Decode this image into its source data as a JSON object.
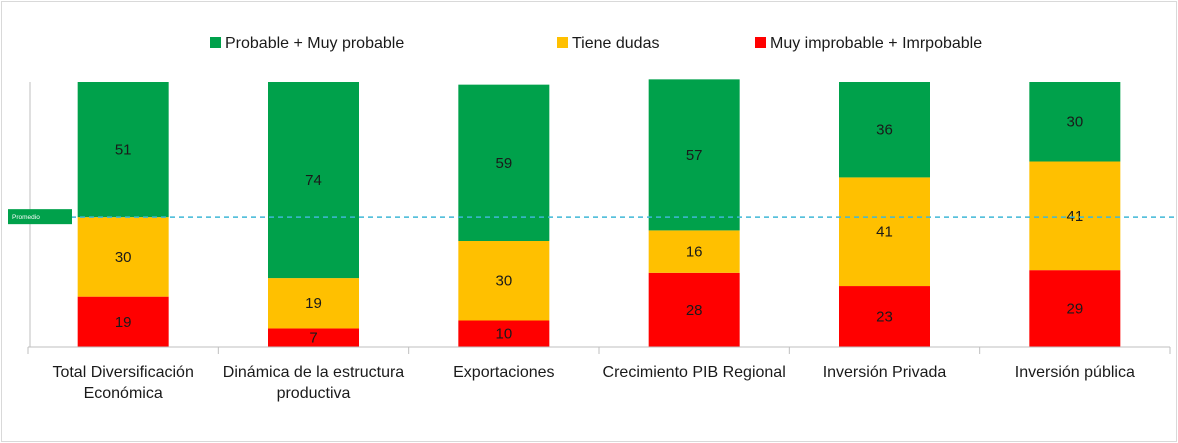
{
  "chart_data": {
    "type": "stacked_bar",
    "categories": [
      "Total Diversificación Económica",
      "Dinámica de la estructura productiva",
      "Exportaciones",
      "Crecimiento PIB Regional",
      "Inversión Privada",
      "Inversión pública"
    ],
    "series": [
      {
        "name": "Muy improbable + Imrpobable",
        "color": "#ff0000",
        "values": [
          19,
          7,
          10,
          28,
          23,
          29
        ]
      },
      {
        "name": "Tiene dudas",
        "color": "#ffc000",
        "values": [
          30,
          19,
          30,
          16,
          41,
          41
        ]
      },
      {
        "name": "Probable + Muy probable",
        "color": "#00a14b",
        "values": [
          51,
          74,
          59,
          57,
          36,
          30
        ]
      }
    ],
    "legend_order": [
      2,
      1,
      0
    ],
    "ylim": [
      0,
      100
    ],
    "reference_line": {
      "label": "Promedio",
      "value": 49,
      "color": "#3fb8d6"
    }
  }
}
